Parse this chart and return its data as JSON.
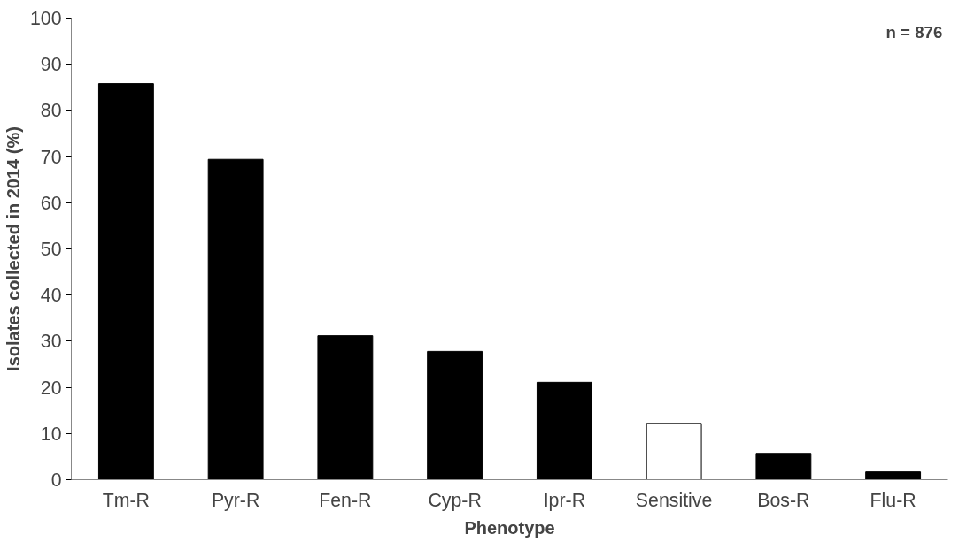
{
  "chart_data": {
    "type": "bar",
    "xlabel": "Phenotype",
    "ylabel": "Isolates collected in 2014 (%)",
    "categories": [
      "Tm-R",
      "Pyr-R",
      "Fen-R",
      "Cyp-R",
      "Ipr-R",
      "Sensitive",
      "Bos-R",
      "Flu-R"
    ],
    "values": [
      85.8,
      69.4,
      31.2,
      27.8,
      21.1,
      12.2,
      5.7,
      1.7
    ],
    "colors": [
      "#000000",
      "#000000",
      "#000000",
      "#000000",
      "#000000",
      "#ffffff",
      "#000000",
      "#000000"
    ],
    "ylim": [
      0,
      100
    ],
    "yticks": [
      0,
      10,
      20,
      30,
      40,
      50,
      60,
      70,
      80,
      90,
      100
    ],
    "grid": false,
    "annotations": [
      "n = 876"
    ]
  }
}
